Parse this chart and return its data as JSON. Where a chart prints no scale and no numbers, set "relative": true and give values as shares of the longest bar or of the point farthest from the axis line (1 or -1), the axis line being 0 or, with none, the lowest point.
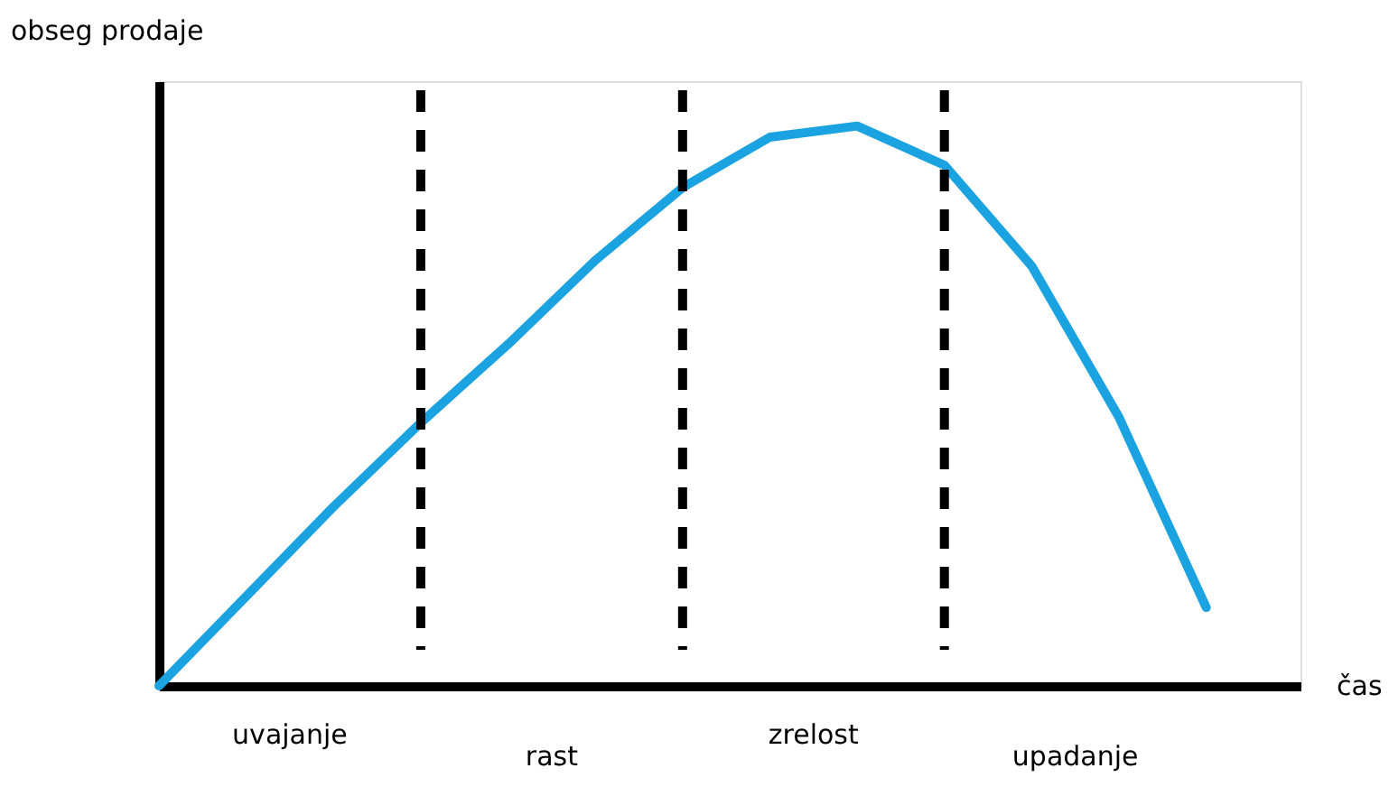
{
  "chart_data": {
    "type": "line",
    "relative": true,
    "ylabel": "obseg prodaje",
    "xlabel": "čas",
    "categories": [
      null,
      null,
      null,
      null,
      null,
      null,
      null,
      null,
      null,
      null,
      null,
      null,
      null
    ],
    "tick_labels": false,
    "grid": "x",
    "marker": "none",
    "line_style": "solid",
    "series": [
      {
        "color": "#1aa3e0",
        "values": [
          0,
          0.16,
          0.32,
          0.47,
          0.61,
          0.76,
          0.89,
          0.98,
          1,
          0.93,
          0.75,
          0.48,
          0.14
        ]
      }
    ],
    "annotations": [
      "uvajanje",
      "rast",
      "zrelost",
      "upadanje"
    ]
  }
}
